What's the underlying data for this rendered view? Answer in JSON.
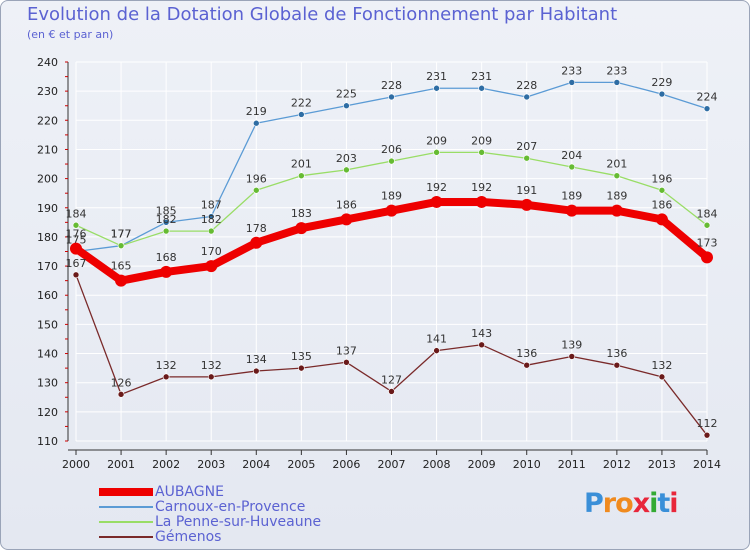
{
  "chart_data": {
    "type": "line",
    "title": "Evolution de la Dotation Globale de Fonctionnement par Habitant",
    "subtitle": "(en € et par an)",
    "xlabel": "",
    "ylabel": "",
    "ylim": [
      110,
      240
    ],
    "y_ticks": [
      110,
      120,
      130,
      140,
      150,
      160,
      170,
      180,
      190,
      200,
      210,
      220,
      230,
      240
    ],
    "x": [
      "2000",
      "2001",
      "2002",
      "2003",
      "2004",
      "2005",
      "2006",
      "2007",
      "2008",
      "2009",
      "2010",
      "2011",
      "2012",
      "2013",
      "2014"
    ],
    "grid": true,
    "legend_position": "bottom-left",
    "series": [
      {
        "name": "Carnoux-en-Provence",
        "color": "#5b9bd5",
        "marker": "#2e6da4",
        "thick": false,
        "values": [
          175,
          177,
          185,
          187,
          219,
          222,
          225,
          228,
          231,
          231,
          228,
          233,
          233,
          229,
          224
        ]
      },
      {
        "name": "La Penne-sur-Huveaune",
        "color": "#99dd66",
        "marker": "#66bb33",
        "thick": false,
        "values": [
          184,
          177,
          182,
          182,
          196,
          201,
          203,
          206,
          209,
          209,
          207,
          204,
          201,
          196,
          184
        ]
      },
      {
        "name": "AUBAGNE",
        "color": "#ee0000",
        "marker": "#ee0000",
        "thick": true,
        "values": [
          176,
          165,
          168,
          170,
          178,
          183,
          186,
          189,
          192,
          192,
          191,
          189,
          189,
          186,
          173
        ]
      },
      {
        "name": "Gémenos",
        "color": "#7a2a2a",
        "marker": "#6a1a1a",
        "thick": false,
        "values": [
          167,
          126,
          132,
          132,
          134,
          135,
          137,
          127,
          141,
          143,
          136,
          139,
          136,
          132,
          112
        ]
      }
    ],
    "legend_order": [
      "AUBAGNE",
      "Carnoux-en-Provence",
      "La Penne-sur-Huveaune",
      "Gémenos"
    ]
  },
  "logo": {
    "text": "Proxiti",
    "letters": [
      "P",
      "r",
      "o",
      "x",
      "i",
      "t",
      "i"
    ],
    "colors": [
      "#3a8fd8",
      "#f08a1e",
      "#f08a1e",
      "#e8263a",
      "#33aa33",
      "#3a8fd8",
      "#e8263a"
    ]
  },
  "colors": {
    "grid": "#ffffff",
    "axis": "#333333",
    "tick_text": "#222222",
    "legend_text": "#5b62d2",
    "red_tick": "#cc0000"
  }
}
